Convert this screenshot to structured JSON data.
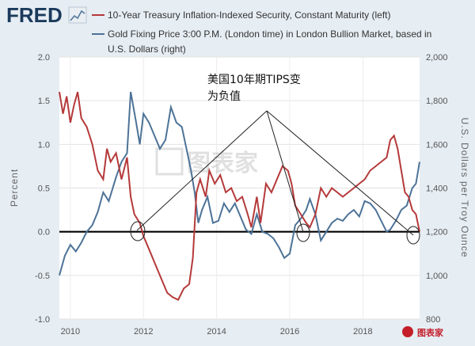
{
  "branding": {
    "logo": "FRED",
    "watermark_center": "图表家",
    "watermark_corner": "图表家"
  },
  "annotation": {
    "line1": "美国10年期TIPS变",
    "line2": "为负值"
  },
  "chart_data": {
    "type": "line",
    "x_ticks": [
      "2010",
      "2012",
      "2014",
      "2016",
      "2018"
    ],
    "left_axis": {
      "label": "Percent",
      "ticks": [
        "2.0",
        "1.5",
        "1.0",
        "0.5",
        "0.0",
        "-0.5",
        "-1.0"
      ],
      "range": [
        -1.0,
        2.0
      ]
    },
    "right_axis": {
      "label": "U.S. Dollars per Troy Ounce",
      "ticks": [
        "2,000",
        "1,800",
        "1,600",
        "1,400",
        "1,200",
        "1,000",
        "800"
      ],
      "range": [
        800,
        2000
      ]
    },
    "series": [
      {
        "name": "10-Year Treasury Inflation-Indexed Security, Constant Maturity (left)",
        "color": "#b5393a",
        "axis": "left",
        "points": [
          [
            2009.7,
            1.6
          ],
          [
            2009.8,
            1.35
          ],
          [
            2009.9,
            1.55
          ],
          [
            2010.0,
            1.25
          ],
          [
            2010.1,
            1.45
          ],
          [
            2010.2,
            1.6
          ],
          [
            2010.3,
            1.3
          ],
          [
            2010.45,
            1.2
          ],
          [
            2010.6,
            1.0
          ],
          [
            2010.75,
            0.7
          ],
          [
            2010.9,
            0.6
          ],
          [
            2011.0,
            0.95
          ],
          [
            2011.1,
            0.8
          ],
          [
            2011.25,
            0.9
          ],
          [
            2011.4,
            0.6
          ],
          [
            2011.55,
            0.85
          ],
          [
            2011.65,
            0.4
          ],
          [
            2011.75,
            0.2
          ],
          [
            2011.9,
            0.1
          ],
          [
            2012.0,
            -0.05
          ],
          [
            2012.15,
            -0.2
          ],
          [
            2012.3,
            -0.35
          ],
          [
            2012.5,
            -0.55
          ],
          [
            2012.65,
            -0.7
          ],
          [
            2012.8,
            -0.75
          ],
          [
            2012.95,
            -0.78
          ],
          [
            2013.1,
            -0.65
          ],
          [
            2013.25,
            -0.6
          ],
          [
            2013.35,
            -0.3
          ],
          [
            2013.45,
            0.45
          ],
          [
            2013.55,
            0.6
          ],
          [
            2013.7,
            0.4
          ],
          [
            2013.8,
            0.7
          ],
          [
            2013.95,
            0.55
          ],
          [
            2014.1,
            0.65
          ],
          [
            2014.25,
            0.45
          ],
          [
            2014.4,
            0.5
          ],
          [
            2014.55,
            0.35
          ],
          [
            2014.7,
            0.4
          ],
          [
            2014.85,
            0.2
          ],
          [
            2014.95,
            0.05
          ],
          [
            2015.1,
            0.4
          ],
          [
            2015.2,
            0.1
          ],
          [
            2015.35,
            0.55
          ],
          [
            2015.5,
            0.45
          ],
          [
            2015.65,
            0.6
          ],
          [
            2015.8,
            0.75
          ],
          [
            2015.95,
            0.7
          ],
          [
            2016.05,
            0.55
          ],
          [
            2016.15,
            0.3
          ],
          [
            2016.3,
            0.2
          ],
          [
            2016.45,
            0.1
          ],
          [
            2016.55,
            0.05
          ],
          [
            2016.7,
            0.2
          ],
          [
            2016.85,
            0.5
          ],
          [
            2017.0,
            0.4
          ],
          [
            2017.15,
            0.5
          ],
          [
            2017.3,
            0.45
          ],
          [
            2017.45,
            0.4
          ],
          [
            2017.6,
            0.45
          ],
          [
            2017.75,
            0.5
          ],
          [
            2017.9,
            0.55
          ],
          [
            2018.05,
            0.6
          ],
          [
            2018.2,
            0.7
          ],
          [
            2018.35,
            0.75
          ],
          [
            2018.5,
            0.8
          ],
          [
            2018.65,
            0.85
          ],
          [
            2018.75,
            1.05
          ],
          [
            2018.85,
            1.1
          ],
          [
            2018.95,
            0.95
          ],
          [
            2019.05,
            0.7
          ],
          [
            2019.15,
            0.45
          ],
          [
            2019.25,
            0.4
          ],
          [
            2019.35,
            0.25
          ],
          [
            2019.45,
            0.2
          ],
          [
            2019.55,
            0.0
          ]
        ]
      },
      {
        "name": "Gold Fixing Price 3:00 P.M. (London time) in London Bullion Market, based in U.S. Dollars (right)",
        "color": "#4d7397",
        "axis": "right",
        "points": [
          [
            2009.7,
            1000
          ],
          [
            2009.85,
            1090
          ],
          [
            2010.0,
            1140
          ],
          [
            2010.15,
            1110
          ],
          [
            2010.3,
            1150
          ],
          [
            2010.45,
            1200
          ],
          [
            2010.6,
            1230
          ],
          [
            2010.75,
            1290
          ],
          [
            2010.9,
            1380
          ],
          [
            2011.05,
            1340
          ],
          [
            2011.25,
            1450
          ],
          [
            2011.4,
            1520
          ],
          [
            2011.55,
            1560
          ],
          [
            2011.65,
            1840
          ],
          [
            2011.8,
            1700
          ],
          [
            2011.9,
            1600
          ],
          [
            2012.0,
            1740
          ],
          [
            2012.15,
            1700
          ],
          [
            2012.3,
            1640
          ],
          [
            2012.45,
            1580
          ],
          [
            2012.6,
            1620
          ],
          [
            2012.75,
            1770
          ],
          [
            2012.9,
            1700
          ],
          [
            2013.05,
            1680
          ],
          [
            2013.2,
            1560
          ],
          [
            2013.3,
            1480
          ],
          [
            2013.4,
            1380
          ],
          [
            2013.5,
            1240
          ],
          [
            2013.6,
            1300
          ],
          [
            2013.75,
            1360
          ],
          [
            2013.9,
            1240
          ],
          [
            2014.05,
            1250
          ],
          [
            2014.2,
            1330
          ],
          [
            2014.35,
            1290
          ],
          [
            2014.5,
            1330
          ],
          [
            2014.65,
            1270
          ],
          [
            2014.8,
            1210
          ],
          [
            2014.95,
            1190
          ],
          [
            2015.1,
            1280
          ],
          [
            2015.25,
            1200
          ],
          [
            2015.4,
            1190
          ],
          [
            2015.55,
            1170
          ],
          [
            2015.7,
            1130
          ],
          [
            2015.85,
            1080
          ],
          [
            2016.0,
            1100
          ],
          [
            2016.15,
            1230
          ],
          [
            2016.3,
            1260
          ],
          [
            2016.45,
            1300
          ],
          [
            2016.55,
            1350
          ],
          [
            2016.7,
            1280
          ],
          [
            2016.85,
            1160
          ],
          [
            2017.0,
            1200
          ],
          [
            2017.15,
            1240
          ],
          [
            2017.3,
            1260
          ],
          [
            2017.45,
            1250
          ],
          [
            2017.6,
            1280
          ],
          [
            2017.75,
            1300
          ],
          [
            2017.9,
            1270
          ],
          [
            2018.05,
            1340
          ],
          [
            2018.2,
            1330
          ],
          [
            2018.35,
            1300
          ],
          [
            2018.5,
            1250
          ],
          [
            2018.65,
            1200
          ],
          [
            2018.75,
            1210
          ],
          [
            2018.9,
            1250
          ],
          [
            2019.05,
            1300
          ],
          [
            2019.2,
            1320
          ],
          [
            2019.35,
            1400
          ],
          [
            2019.45,
            1420
          ],
          [
            2019.55,
            1520
          ]
        ]
      }
    ]
  }
}
